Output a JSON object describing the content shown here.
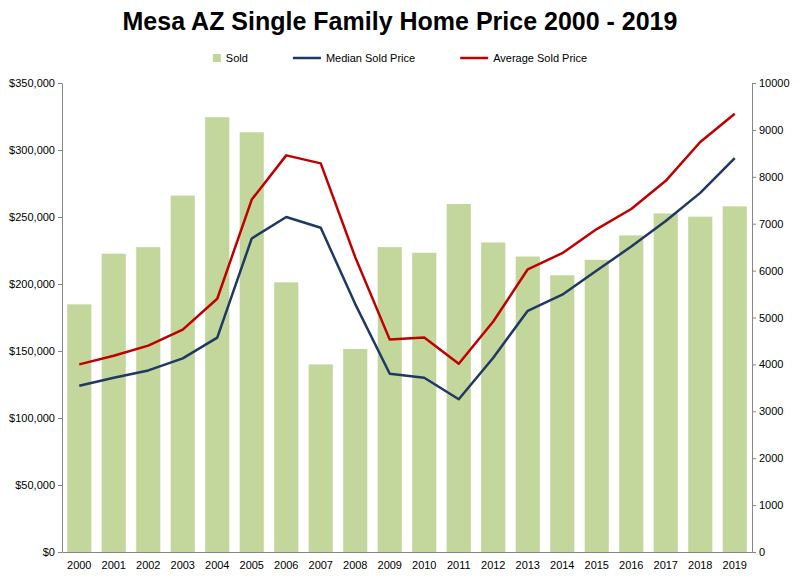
{
  "chart_data": {
    "type": "combo",
    "title": "Mesa AZ Single Family Home Price 2000 - 2019",
    "categories": [
      "2000",
      "2001",
      "2002",
      "2003",
      "2004",
      "2005",
      "2006",
      "2007",
      "2008",
      "2009",
      "2010",
      "2011",
      "2012",
      "2013",
      "2014",
      "2015",
      "2016",
      "2017",
      "2018",
      "2019"
    ],
    "series": [
      {
        "name": "Sold",
        "type": "bar",
        "axis": "y2",
        "color": "#c3d69b",
        "values": [
          5280,
          6360,
          6500,
          7600,
          9270,
          8950,
          5750,
          4000,
          4330,
          6500,
          6380,
          7420,
          6600,
          6300,
          5900,
          6230,
          6750,
          7220,
          7150,
          7370
        ]
      },
      {
        "name": "Median Sold Price",
        "type": "line",
        "color": "#1f3864",
        "values": [
          124000,
          130000,
          135500,
          144500,
          160000,
          234000,
          250000,
          242000,
          185000,
          133000,
          130000,
          114000,
          145000,
          180000,
          192000,
          210000,
          228000,
          247000,
          268000,
          294000
        ]
      },
      {
        "name": "Average Sold Price",
        "type": "line",
        "color": "#c00000",
        "values": [
          140000,
          146500,
          154000,
          166000,
          189000,
          263000,
          296000,
          290000,
          220000,
          158500,
          160000,
          140500,
          172000,
          211000,
          223000,
          241000,
          256000,
          277000,
          306000,
          327000
        ]
      }
    ],
    "ylim": [
      0,
      350000
    ],
    "yticks": [
      {
        "value": 0,
        "label": "$0"
      },
      {
        "value": 50000,
        "label": "$50,000"
      },
      {
        "value": 100000,
        "label": "$100,000"
      },
      {
        "value": 150000,
        "label": "$150,000"
      },
      {
        "value": 200000,
        "label": "$200,000"
      },
      {
        "value": 250000,
        "label": "$250,000"
      },
      {
        "value": 300000,
        "label": "$300,000"
      },
      {
        "value": 350000,
        "label": "$350,000"
      }
    ],
    "y2lim": [
      0,
      10000
    ],
    "y2ticks": [
      0,
      1000,
      2000,
      3000,
      4000,
      5000,
      6000,
      7000,
      8000,
      9000,
      10000
    ],
    "grid": false,
    "legend": "top"
  }
}
